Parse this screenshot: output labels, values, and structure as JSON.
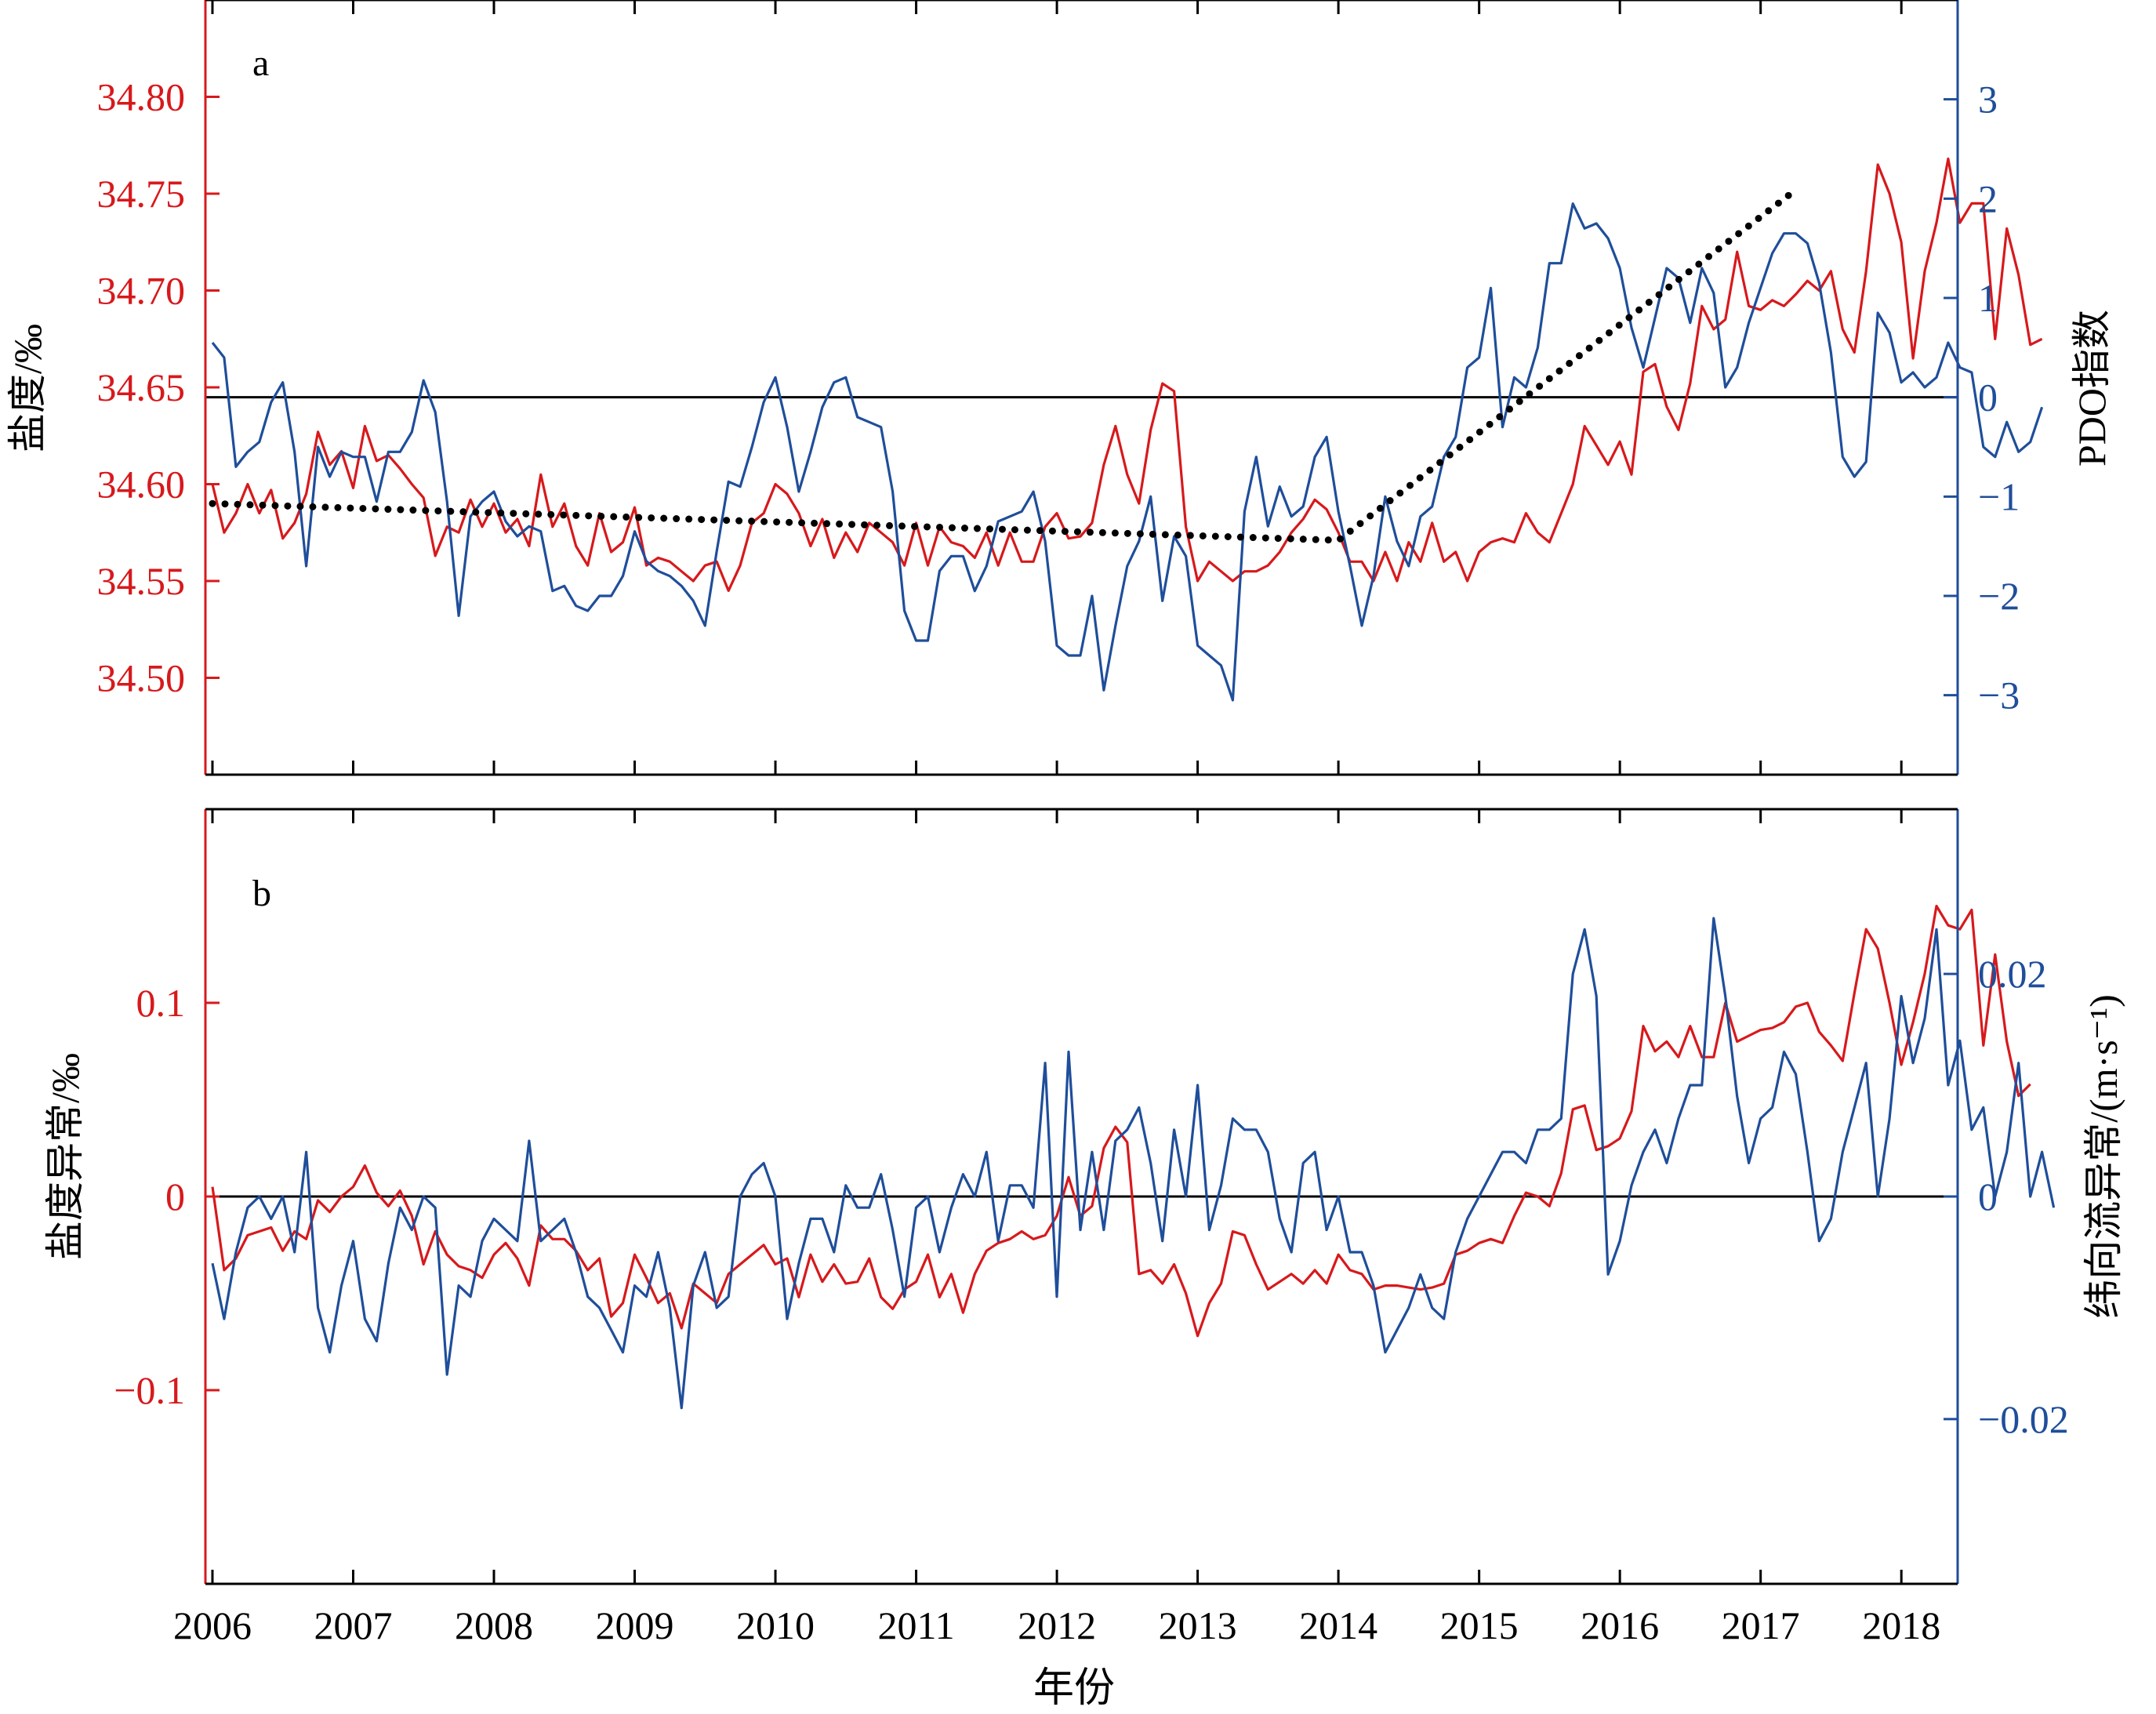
{
  "figure": {
    "xlabel": "年份",
    "colors": {
      "red": "#d7191c",
      "blue": "#1f4e9a",
      "black": "#000000"
    }
  },
  "chart_data": [
    {
      "type": "line",
      "panel_label": "a",
      "xlim": [
        2005.95,
        2018.4
      ],
      "x_ticks": [
        "2006",
        "2007",
        "2008",
        "2009",
        "2010",
        "2011",
        "2012",
        "2013",
        "2014",
        "2015",
        "2016",
        "2017",
        "2018"
      ],
      "left_axis": {
        "label": "盐度/‰",
        "ylim": [
          34.45,
          34.85
        ],
        "ticks": [
          "34.50",
          "34.55",
          "34.60",
          "34.65",
          "34.70",
          "34.75",
          "34.80"
        ]
      },
      "right_axis": {
        "label": "PDO指数",
        "ylim": [
          -3.8,
          4
        ],
        "ticks": [
          "−3",
          "−2",
          "−1",
          "0",
          "1",
          "2",
          "3"
        ]
      },
      "reference_line": {
        "axis": "right",
        "value": 0
      },
      "series": [
        {
          "axis": "left",
          "color": "#d7191c",
          "start": 2006.0,
          "step": 0.08333,
          "values": [
            34.6,
            34.575,
            34.585,
            34.6,
            34.585,
            34.597,
            34.572,
            34.58,
            34.595,
            34.627,
            34.61,
            34.617,
            34.598,
            34.63,
            34.612,
            34.615,
            34.608,
            34.6,
            34.593,
            34.563,
            34.578,
            34.575,
            34.592,
            34.578,
            34.59,
            34.575,
            34.582,
            34.568,
            34.605,
            34.578,
            34.59,
            34.568,
            34.558,
            34.585,
            34.565,
            34.57,
            34.588,
            34.558,
            34.562,
            34.56,
            34.555,
            34.55,
            34.558,
            34.56,
            34.545,
            34.558,
            34.58,
            34.585,
            34.6,
            34.595,
            34.585,
            34.568,
            34.582,
            34.562,
            34.575,
            34.565,
            34.58,
            34.575,
            34.57,
            34.558,
            34.58,
            34.558,
            34.578,
            34.57,
            34.568,
            34.562,
            34.575,
            34.558,
            34.575,
            34.56,
            34.56,
            34.578,
            34.585,
            34.572,
            34.573,
            34.58,
            34.61,
            34.63,
            34.605,
            34.59,
            34.628,
            34.652,
            34.648,
            34.578,
            34.55,
            34.56,
            34.555,
            34.55,
            34.555,
            34.555,
            34.558,
            34.565,
            34.575,
            34.582,
            34.592,
            34.587,
            34.575,
            34.56,
            34.56,
            34.55,
            34.565,
            34.55,
            34.57,
            34.56,
            34.58,
            34.56,
            34.565,
            34.55,
            34.565,
            34.57,
            34.572,
            34.57,
            34.585,
            34.575,
            34.57,
            34.585,
            34.6,
            34.63,
            34.62,
            34.61,
            34.622,
            34.605,
            34.658,
            34.662,
            34.64,
            34.628,
            34.652,
            34.692,
            34.68,
            34.685,
            34.72,
            34.692,
            34.69,
            34.695,
            34.692,
            34.698,
            34.705,
            34.7,
            34.71,
            34.68,
            34.668,
            34.71,
            34.765,
            34.75,
            34.725,
            34.665,
            34.71,
            34.735,
            34.768,
            34.735,
            34.745,
            34.745,
            34.675,
            34.732,
            34.708,
            34.672,
            34.675
          ]
        },
        {
          "axis": "right",
          "color": "#1f4e9a",
          "start": 2006.0,
          "step": 0.08333,
          "values": [
            0.55,
            0.4,
            -0.7,
            -0.55,
            -0.45,
            -0.05,
            0.15,
            -0.55,
            -1.7,
            -0.5,
            -0.8,
            -0.55,
            -0.6,
            -0.6,
            -1.05,
            -0.55,
            -0.55,
            -0.35,
            0.17,
            -0.15,
            -1.05,
            -2.2,
            -1.2,
            -1.05,
            -0.95,
            -1.25,
            -1.4,
            -1.3,
            -1.35,
            -1.95,
            -1.9,
            -2.1,
            -2.15,
            -2.0,
            -2.0,
            -1.8,
            -1.35,
            -1.65,
            -1.75,
            -1.8,
            -1.9,
            -2.05,
            -2.3,
            -1.55,
            -0.85,
            -0.9,
            -0.5,
            -0.05,
            0.2,
            -0.3,
            -0.95,
            -0.55,
            -0.1,
            0.15,
            0.2,
            -0.2,
            -0.25,
            -0.3,
            -0.95,
            -2.15,
            -2.45,
            -2.45,
            -1.75,
            -1.6,
            -1.6,
            -1.95,
            -1.7,
            -1.25,
            -1.2,
            -1.15,
            -0.95,
            -1.45,
            -2.5,
            -2.6,
            -2.6,
            -2.0,
            -2.95,
            -2.3,
            -1.7,
            -1.45,
            -1.0,
            -2.05,
            -1.4,
            -1.6,
            -2.5,
            -2.6,
            -2.7,
            -3.05,
            -1.15,
            -0.6,
            -1.3,
            -0.9,
            -1.2,
            -1.1,
            -0.6,
            -0.4,
            -1.15,
            -1.7,
            -2.3,
            -1.8,
            -1.0,
            -1.45,
            -1.7,
            -1.2,
            -1.1,
            -0.6,
            -0.4,
            0.3,
            0.4,
            1.1,
            -0.3,
            0.2,
            0.1,
            0.5,
            1.35,
            1.35,
            1.95,
            1.7,
            1.75,
            1.6,
            1.3,
            0.7,
            0.3,
            0.8,
            1.3,
            1.2,
            0.75,
            1.3,
            1.05,
            0.1,
            0.3,
            0.75,
            1.1,
            1.45,
            1.65,
            1.65,
            1.55,
            1.15,
            0.45,
            -0.6,
            -0.8,
            -0.65,
            0.85,
            0.65,
            0.15,
            0.25,
            0.1,
            0.2,
            0.55,
            0.3,
            0.25,
            -0.5,
            -0.6,
            -0.25,
            -0.55,
            -0.45,
            -0.1
          ]
        },
        {
          "axis": "left",
          "color": "#000000",
          "style": "dotted",
          "x": [
            2006.0,
            2014.0,
            2017.25
          ],
          "values": [
            34.59,
            34.571,
            34.752
          ]
        }
      ]
    },
    {
      "type": "line",
      "panel_label": "b",
      "xlim": [
        2005.95,
        2018.4
      ],
      "x_ticks": [
        "2006",
        "2007",
        "2008",
        "2009",
        "2010",
        "2011",
        "2012",
        "2013",
        "2014",
        "2015",
        "2016",
        "2017",
        "2018"
      ],
      "left_axis": {
        "label": "盐度异常/‰",
        "ylim": [
          -0.2,
          0.2
        ],
        "ticks": [
          "−0.1",
          "0",
          "0.1"
        ]
      },
      "right_axis": {
        "label": "纬向流异常/(m·s⁻¹)",
        "ylim": [
          -0.0348,
          0.0348
        ],
        "ticks": [
          "−0.02",
          "0",
          "0.02"
        ]
      },
      "reference_line": {
        "axis": "left",
        "value": 0
      },
      "series": [
        {
          "axis": "left",
          "color": "#d7191c",
          "start": 2006.0,
          "step": 0.08333,
          "values": [
            0.005,
            -0.038,
            -0.032,
            -0.02,
            -0.018,
            -0.016,
            -0.028,
            -0.018,
            -0.022,
            -0.002,
            -0.008,
            0.0,
            0.005,
            0.016,
            0.002,
            -0.005,
            0.003,
            -0.01,
            -0.035,
            -0.018,
            -0.03,
            -0.036,
            -0.038,
            -0.042,
            -0.03,
            -0.024,
            -0.032,
            -0.046,
            -0.015,
            -0.022,
            -0.022,
            -0.028,
            -0.038,
            -0.032,
            -0.062,
            -0.055,
            -0.03,
            -0.042,
            -0.055,
            -0.05,
            -0.068,
            -0.045,
            -0.05,
            -0.055,
            -0.04,
            -0.035,
            -0.03,
            -0.025,
            -0.035,
            -0.032,
            -0.052,
            -0.03,
            -0.044,
            -0.035,
            -0.045,
            -0.044,
            -0.032,
            -0.052,
            -0.058,
            -0.048,
            -0.044,
            -0.03,
            -0.052,
            -0.04,
            -0.06,
            -0.04,
            -0.028,
            -0.024,
            -0.022,
            -0.018,
            -0.022,
            -0.02,
            -0.01,
            0.01,
            -0.01,
            -0.005,
            0.025,
            0.036,
            0.028,
            -0.04,
            -0.038,
            -0.045,
            -0.035,
            -0.05,
            -0.072,
            -0.055,
            -0.045,
            -0.018,
            -0.02,
            -0.035,
            -0.048,
            -0.044,
            -0.04,
            -0.045,
            -0.038,
            -0.045,
            -0.03,
            -0.038,
            -0.04,
            -0.048,
            -0.046,
            -0.046,
            -0.047,
            -0.048,
            -0.047,
            -0.045,
            -0.03,
            -0.028,
            -0.024,
            -0.022,
            -0.024,
            -0.01,
            0.002,
            0.0,
            -0.005,
            0.012,
            0.045,
            0.047,
            0.024,
            0.026,
            0.03,
            0.044,
            0.088,
            0.075,
            0.08,
            0.072,
            0.088,
            0.072,
            0.072,
            0.1,
            0.08,
            0.083,
            0.086,
            0.087,
            0.09,
            0.098,
            0.1,
            0.085,
            0.078,
            0.07,
            0.105,
            0.138,
            0.128,
            0.1,
            0.068,
            0.09,
            0.115,
            0.15,
            0.14,
            0.138,
            0.148,
            0.078,
            0.125,
            0.08,
            0.052,
            0.058
          ]
        },
        {
          "axis": "right",
          "color": "#1f4e9a",
          "start": 2006.0,
          "step": 0.08333,
          "values": [
            -0.006,
            -0.011,
            -0.005,
            -0.001,
            0.0,
            -0.002,
            0.0,
            -0.005,
            0.004,
            -0.01,
            -0.014,
            -0.008,
            -0.004,
            -0.011,
            -0.013,
            -0.006,
            -0.001,
            -0.003,
            0.0,
            -0.001,
            -0.016,
            -0.008,
            -0.009,
            -0.004,
            -0.002,
            -0.003,
            -0.004,
            0.005,
            -0.004,
            -0.003,
            -0.002,
            -0.005,
            -0.009,
            -0.01,
            -0.012,
            -0.014,
            -0.008,
            -0.009,
            -0.005,
            -0.01,
            -0.019,
            -0.008,
            -0.005,
            -0.01,
            -0.009,
            0.0,
            0.002,
            0.003,
            0.0,
            -0.011,
            -0.006,
            -0.002,
            -0.002,
            -0.005,
            0.001,
            -0.001,
            -0.001,
            0.002,
            -0.003,
            -0.009,
            -0.001,
            0.0,
            -0.005,
            -0.001,
            0.002,
            0.0,
            0.004,
            -0.004,
            0.001,
            0.001,
            -0.001,
            0.012,
            -0.009,
            0.013,
            -0.003,
            0.004,
            -0.003,
            0.005,
            0.006,
            0.008,
            0.003,
            -0.004,
            0.006,
            0.0,
            0.01,
            -0.003,
            0.001,
            0.007,
            0.006,
            0.006,
            0.004,
            -0.002,
            -0.005,
            0.003,
            0.004,
            -0.003,
            0.0,
            -0.005,
            -0.005,
            -0.008,
            -0.014,
            -0.012,
            -0.01,
            -0.007,
            -0.01,
            -0.011,
            -0.005,
            -0.002,
            0.0,
            0.002,
            0.004,
            0.004,
            0.003,
            0.006,
            0.006,
            0.007,
            0.02,
            0.024,
            0.018,
            -0.007,
            -0.004,
            0.001,
            0.004,
            0.006,
            0.003,
            0.007,
            0.01,
            0.01,
            0.025,
            0.018,
            0.009,
            0.003,
            0.007,
            0.008,
            0.013,
            0.011,
            0.004,
            -0.004,
            -0.002,
            0.004,
            0.008,
            0.012,
            0.0,
            0.007,
            0.018,
            0.012,
            0.016,
            0.024,
            0.01,
            0.014,
            0.006,
            0.008,
            0.0,
            0.004,
            0.012,
            0.0,
            0.004,
            -0.001
          ]
        }
      ]
    }
  ]
}
